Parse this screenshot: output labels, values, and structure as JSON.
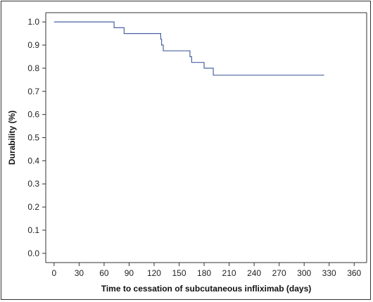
{
  "chart_data": {
    "type": "line",
    "step": true,
    "title": "",
    "xlabel": "Time to cessation of subcutaneous infliximab (days)",
    "ylabel": "Durability (%)",
    "xlim": [
      -10,
      375
    ],
    "ylim": [
      -0.04,
      1.04
    ],
    "x_ticks": [
      0,
      30,
      60,
      90,
      120,
      150,
      180,
      210,
      240,
      270,
      300,
      330,
      360
    ],
    "y_ticks": [
      "0.0",
      "0.1",
      "0.2",
      "0.3",
      "0.4",
      "0.5",
      "0.6",
      "0.7",
      "0.8",
      "0.9",
      "1.0"
    ],
    "grid": false,
    "line_color": "#4a62a4",
    "series": [
      {
        "x": [
          0,
          72,
          72,
          84,
          84,
          128,
          128,
          129,
          129,
          131,
          131,
          163,
          163,
          165,
          165,
          180,
          180,
          191,
          191,
          324
        ],
        "y": [
          1.0,
          1.0,
          0.975,
          0.975,
          0.95,
          0.95,
          0.925,
          0.925,
          0.9,
          0.9,
          0.875,
          0.875,
          0.85,
          0.85,
          0.825,
          0.825,
          0.8,
          0.8,
          0.77,
          0.77
        ]
      }
    ]
  }
}
